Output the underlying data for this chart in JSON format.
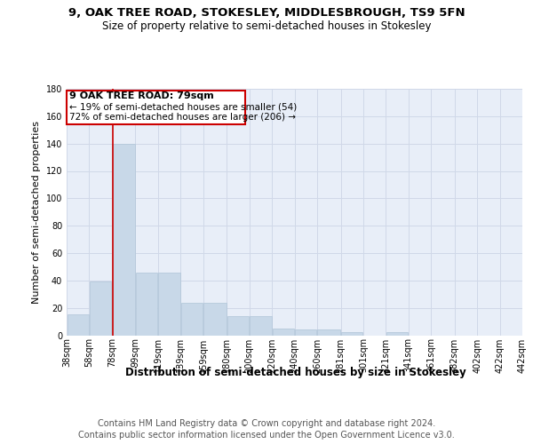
{
  "title_line1": "9, OAK TREE ROAD, STOKESLEY, MIDDLESBROUGH, TS9 5FN",
  "title_line2": "Size of property relative to semi-detached houses in Stokesley",
  "xlabel": "Distribution of semi-detached houses by size in Stokesley",
  "ylabel": "Number of semi-detached properties",
  "footer_line1": "Contains HM Land Registry data © Crown copyright and database right 2024.",
  "footer_line2": "Contains public sector information licensed under the Open Government Licence v3.0.",
  "annotation_title": "9 OAK TREE ROAD: 79sqm",
  "annotation_smaller": "← 19% of semi-detached houses are smaller (54)",
  "annotation_larger": "72% of semi-detached houses are larger (206) →",
  "property_size": 79,
  "bins": [
    38,
    58,
    78,
    99,
    119,
    139,
    159,
    180,
    200,
    220,
    240,
    260,
    281,
    301,
    321,
    341,
    361,
    382,
    402,
    422,
    442
  ],
  "bar_values": [
    15,
    39,
    140,
    46,
    46,
    24,
    24,
    14,
    14,
    5,
    4,
    4,
    2,
    0,
    2,
    0,
    0,
    0,
    0,
    0
  ],
  "bar_color": "#c8d8e8",
  "bar_edge_color": "#b0c4d8",
  "vline_x": 79,
  "vline_color": "#cc0000",
  "annotation_box_edge": "#cc0000",
  "ylim": [
    0,
    180
  ],
  "yticks": [
    0,
    20,
    40,
    60,
    80,
    100,
    120,
    140,
    160,
    180
  ],
  "grid_color": "#d0d8e8",
  "background_color": "#e8eef8",
  "title_fontsize": 9.5,
  "subtitle_fontsize": 8.5,
  "ylabel_fontsize": 8,
  "xlabel_fontsize": 8.5,
  "tick_fontsize": 7,
  "annotation_title_fontsize": 8,
  "annotation_text_fontsize": 7.5,
  "footer_fontsize": 7
}
